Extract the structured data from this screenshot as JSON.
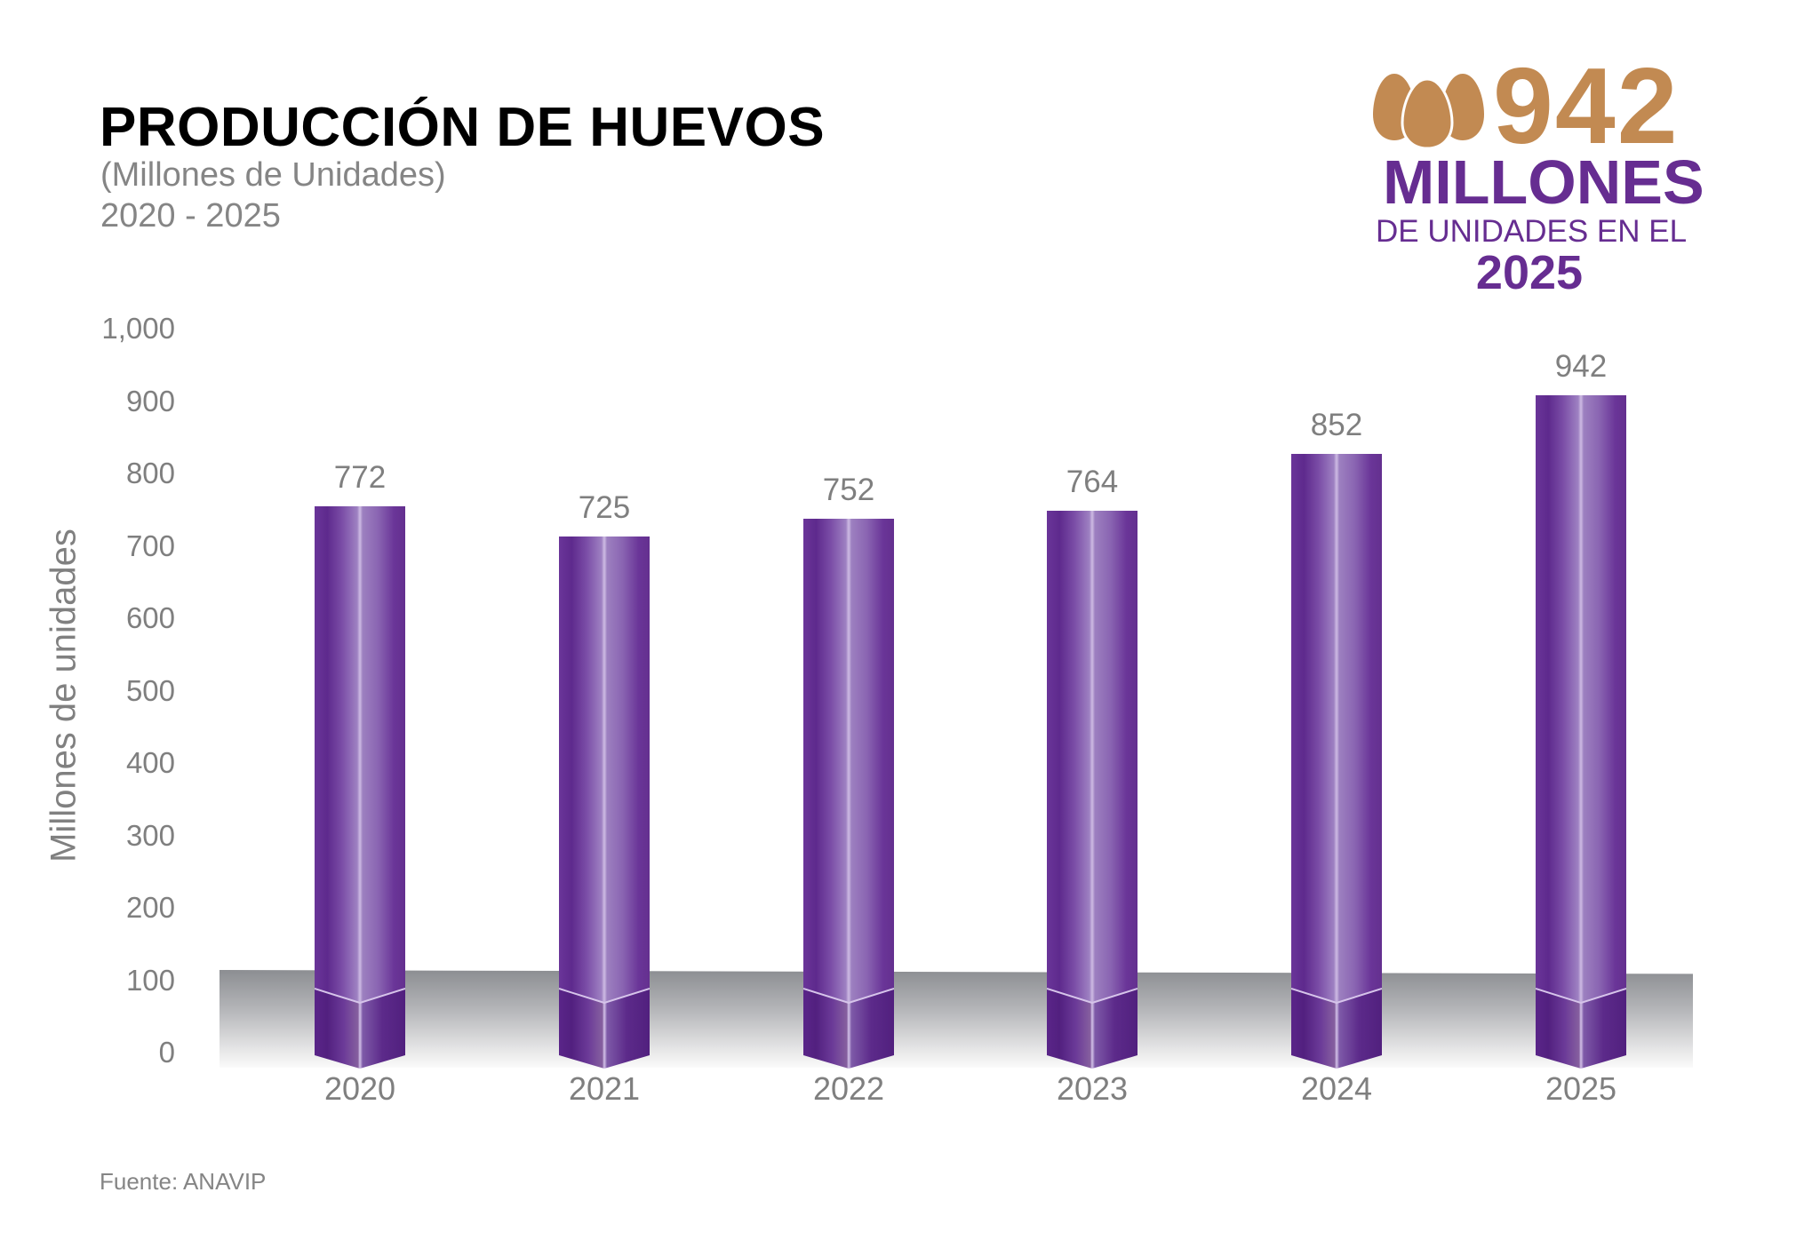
{
  "header": {
    "title": "PRODUCCIÓN DE HUEVOS",
    "subtitle": "(Millones de Unidades)",
    "period": "2020 - 2025"
  },
  "badge": {
    "icon": "eggs-icon",
    "number": "942",
    "big_text": "MILLONES",
    "mid_text": "DE UNIDADES EN EL",
    "year": "2025",
    "colors": {
      "number": "#c28a52",
      "text": "#662d91"
    }
  },
  "axis": {
    "ylabel": "Millones de unidades",
    "yticks": [
      "1,000",
      "900",
      "800",
      "700",
      "600",
      "500",
      "400",
      "300",
      "200",
      "100",
      "0"
    ]
  },
  "source": "Fuente: ANAVIP",
  "colors": {
    "bar": "#662d91",
    "bar_highlight": "#c8b4df",
    "floor_top": "#8c8e92",
    "text_gray": "#7f7f7f"
  },
  "chart_data": {
    "type": "bar",
    "title": "PRODUCCIÓN DE HUEVOS",
    "subtitle": "(Millones de Unidades) 2020 - 2025",
    "categories": [
      "2020",
      "2021",
      "2022",
      "2023",
      "2024",
      "2025"
    ],
    "values": [
      772,
      725,
      752,
      764,
      852,
      942
    ],
    "value_labels": [
      "772",
      "725",
      "752",
      "764",
      "852",
      "942"
    ],
    "xlabel": "",
    "ylabel": "Millones de unidades",
    "ylim": [
      0,
      1000
    ],
    "yticks": [
      0,
      100,
      200,
      300,
      400,
      500,
      600,
      700,
      800,
      900,
      1000
    ],
    "grid": false,
    "legend": null,
    "style": "3d-cylinder-bars",
    "source": "Fuente: ANAVIP"
  }
}
